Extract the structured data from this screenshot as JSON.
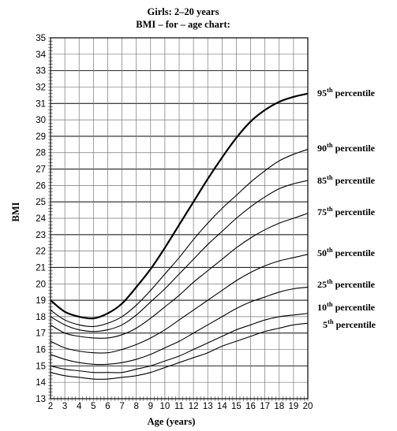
{
  "chart_data": {
    "type": "line",
    "title": "Girls: 2–20 years",
    "subtitle": "BMI – for – age chart:",
    "xlabel": "Age (years)",
    "ylabel": "BMI",
    "xlim": [
      2,
      20
    ],
    "ylim": [
      13,
      35
    ],
    "x_ticks": [
      2,
      3,
      4,
      5,
      6,
      7,
      8,
      9,
      10,
      11,
      12,
      13,
      14,
      15,
      16,
      17,
      18,
      19,
      20
    ],
    "y_ticks": [
      13,
      14,
      15,
      16,
      17,
      18,
      19,
      20,
      21,
      22,
      23,
      24,
      25,
      26,
      27,
      28,
      29,
      30,
      31,
      32,
      33,
      34,
      35
    ],
    "grid": true,
    "x": [
      2,
      3,
      4,
      5,
      6,
      7,
      8,
      9,
      10,
      11,
      12,
      13,
      14,
      15,
      16,
      17,
      18,
      19,
      20
    ],
    "series": [
      {
        "name": "95",
        "label_sup": "th",
        "label_text": " percentile",
        "values": [
          19.0,
          18.3,
          18.0,
          17.9,
          18.2,
          18.8,
          19.8,
          20.9,
          22.2,
          23.6,
          25.0,
          26.4,
          27.7,
          28.9,
          29.9,
          30.6,
          31.1,
          31.4,
          31.6
        ]
      },
      {
        "name": "90",
        "label_sup": "th",
        "label_text": " percentile",
        "values": [
          18.4,
          17.8,
          17.5,
          17.4,
          17.6,
          18.0,
          18.7,
          19.6,
          20.6,
          21.6,
          22.7,
          23.7,
          24.6,
          25.4,
          26.2,
          26.9,
          27.5,
          27.9,
          28.2
        ]
      },
      {
        "name": "85",
        "label_sup": "th",
        "label_text": " percentile",
        "values": [
          18.0,
          17.5,
          17.2,
          17.1,
          17.2,
          17.5,
          18.1,
          18.9,
          19.7,
          20.6,
          21.5,
          22.4,
          23.2,
          24.0,
          24.7,
          25.3,
          25.8,
          26.1,
          26.3
        ]
      },
      {
        "name": "75",
        "label_sup": "th",
        "label_text": " percentile",
        "values": [
          17.5,
          17.0,
          16.8,
          16.7,
          16.7,
          16.9,
          17.3,
          17.9,
          18.6,
          19.3,
          20.1,
          20.8,
          21.5,
          22.2,
          22.8,
          23.3,
          23.7,
          24.0,
          24.3
        ]
      },
      {
        "name": "50",
        "label_sup": "th",
        "label_text": " percentile",
        "values": [
          16.5,
          16.1,
          15.9,
          15.8,
          15.8,
          16.0,
          16.3,
          16.7,
          17.2,
          17.8,
          18.4,
          19.0,
          19.6,
          20.2,
          20.7,
          21.1,
          21.4,
          21.6,
          21.8
        ]
      },
      {
        "name": "25",
        "label_sup": "th",
        "label_text": " percentile",
        "values": [
          15.7,
          15.4,
          15.2,
          15.1,
          15.1,
          15.2,
          15.4,
          15.7,
          16.1,
          16.5,
          17.0,
          17.5,
          18.0,
          18.5,
          18.9,
          19.2,
          19.5,
          19.7,
          19.8
        ]
      },
      {
        "name": "10",
        "label_sup": "th",
        "label_text": " percentile",
        "values": [
          15.0,
          14.8,
          14.7,
          14.6,
          14.6,
          14.6,
          14.8,
          15.0,
          15.3,
          15.6,
          16.0,
          16.4,
          16.8,
          17.2,
          17.5,
          17.8,
          18.0,
          18.1,
          18.2
        ]
      },
      {
        "name": "5",
        "label_sup": "th",
        "label_text": " percentile",
        "values": [
          14.6,
          14.4,
          14.3,
          14.2,
          14.2,
          14.3,
          14.4,
          14.6,
          14.9,
          15.2,
          15.5,
          15.8,
          16.2,
          16.5,
          16.8,
          17.1,
          17.3,
          17.5,
          17.6
        ]
      }
    ]
  }
}
